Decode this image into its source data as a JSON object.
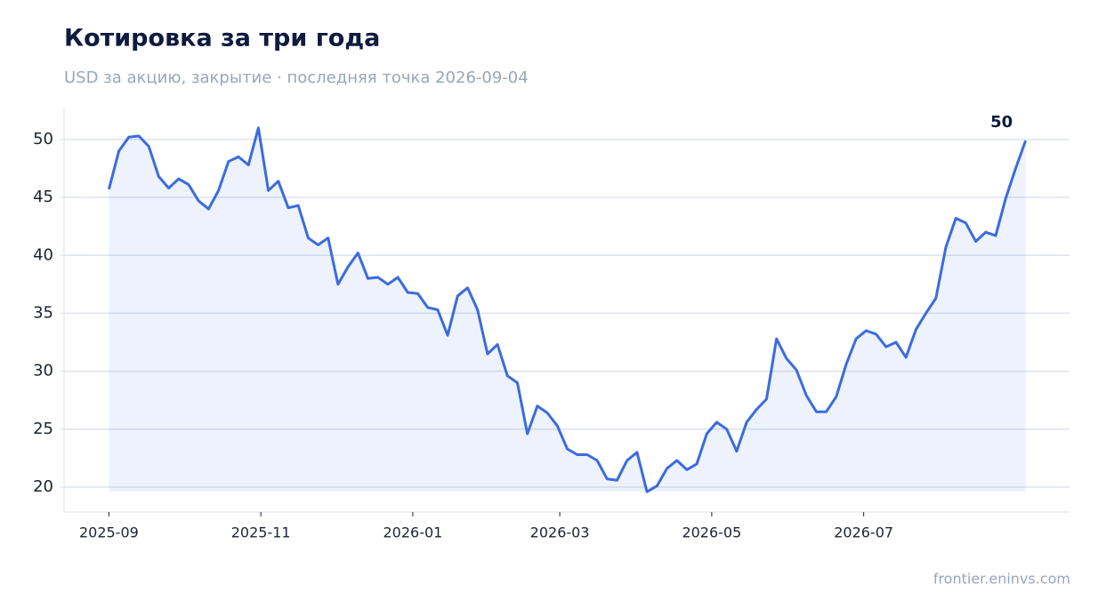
{
  "chart_data": {
    "type": "line",
    "title": "Котировка за три года",
    "subtitle": "USD за акцию, закрытие · последняя точка 2026-09-04",
    "source": "frontier.eninvs.com",
    "annotation": "50",
    "color": "#3b6be0",
    "grid": true,
    "x": [
      "2025-09-01",
      "2025-09-05",
      "2025-09-09",
      "2025-09-13",
      "2025-09-17",
      "2025-09-21",
      "2025-09-25",
      "2025-09-29",
      "2025-10-03",
      "2025-10-07",
      "2025-10-11",
      "2025-10-15",
      "2025-10-19",
      "2025-10-23",
      "2025-10-27",
      "2025-10-31",
      "2025-11-04",
      "2025-11-08",
      "2025-11-12",
      "2025-11-16",
      "2025-11-20",
      "2025-11-24",
      "2025-11-28",
      "2025-12-02",
      "2025-12-06",
      "2025-12-10",
      "2025-12-14",
      "2025-12-18",
      "2025-12-22",
      "2025-12-26",
      "2025-12-30",
      "2026-01-03",
      "2026-01-07",
      "2026-01-11",
      "2026-01-15",
      "2026-01-19",
      "2026-01-23",
      "2026-01-27",
      "2026-01-31",
      "2026-02-04",
      "2026-02-08",
      "2026-02-12",
      "2026-02-16",
      "2026-02-20",
      "2026-02-24",
      "2026-02-28",
      "2026-03-04",
      "2026-03-08",
      "2026-03-12",
      "2026-03-16",
      "2026-03-20",
      "2026-03-24",
      "2026-03-28",
      "2026-04-01",
      "2026-04-05",
      "2026-04-09",
      "2026-04-13",
      "2026-04-17",
      "2026-04-21",
      "2026-04-25",
      "2026-04-29",
      "2026-05-03",
      "2026-05-07",
      "2026-05-11",
      "2026-05-15",
      "2026-05-19",
      "2026-05-23",
      "2026-05-27",
      "2026-05-31",
      "2026-06-04",
      "2026-06-08",
      "2026-06-12",
      "2026-06-16",
      "2026-06-20",
      "2026-06-24",
      "2026-06-28",
      "2026-07-02",
      "2026-07-06",
      "2026-07-10",
      "2026-07-14",
      "2026-07-18",
      "2026-07-22",
      "2026-07-26",
      "2026-07-30",
      "2026-08-03",
      "2026-08-07",
      "2026-08-11",
      "2026-08-15",
      "2026-08-19",
      "2026-08-23",
      "2026-08-27",
      "2026-08-31",
      "2026-09-04"
    ],
    "series": [
      {
        "name": "Котировка",
        "color": "#3b6be0",
        "values": [
          45.7,
          49.0,
          50.2,
          50.3,
          49.4,
          46.8,
          45.8,
          46.6,
          46.1,
          44.7,
          44.0,
          45.6,
          48.1,
          48.5,
          47.8,
          51.0,
          45.6,
          46.4,
          44.1,
          44.3,
          41.5,
          40.9,
          41.5,
          37.5,
          39.0,
          40.2,
          38.0,
          38.1,
          37.5,
          38.1,
          36.8,
          36.7,
          35.5,
          35.3,
          33.1,
          36.5,
          37.2,
          35.3,
          31.5,
          32.3,
          29.6,
          29.0,
          24.6,
          27.0,
          26.4,
          25.3,
          23.3,
          22.8,
          22.8,
          22.3,
          20.7,
          20.6,
          22.3,
          23.0,
          19.6,
          20.1,
          21.6,
          22.3,
          21.5,
          22.0,
          24.6,
          25.6,
          25.0,
          23.1,
          25.6,
          26.7,
          27.6,
          32.8,
          31.1,
          30.1,
          27.9,
          26.5,
          26.5,
          27.8,
          30.6,
          32.8,
          33.5,
          33.2,
          32.1,
          32.5,
          31.2,
          33.6,
          35.0,
          36.3,
          40.7,
          43.2,
          42.8,
          41.2,
          42.0,
          41.7,
          44.9,
          47.5,
          49.9
        ]
      }
    ],
    "xlim": [
      "2025-08-14",
      "2026-09-22"
    ],
    "xticks": [
      {
        "value": "2025-09-01",
        "label": "2025-09"
      },
      {
        "value": "2025-11-01",
        "label": "2025-11"
      },
      {
        "value": "2026-01-01",
        "label": "2026-01"
      },
      {
        "value": "2026-03-01",
        "label": "2026-03"
      },
      {
        "value": "2026-05-01",
        "label": "2026-05"
      },
      {
        "value": "2026-07-01",
        "label": "2026-07"
      }
    ],
    "ylim": [
      17.85,
      52.6
    ],
    "yticks": [
      20,
      25,
      30,
      35,
      40,
      45,
      50
    ]
  }
}
